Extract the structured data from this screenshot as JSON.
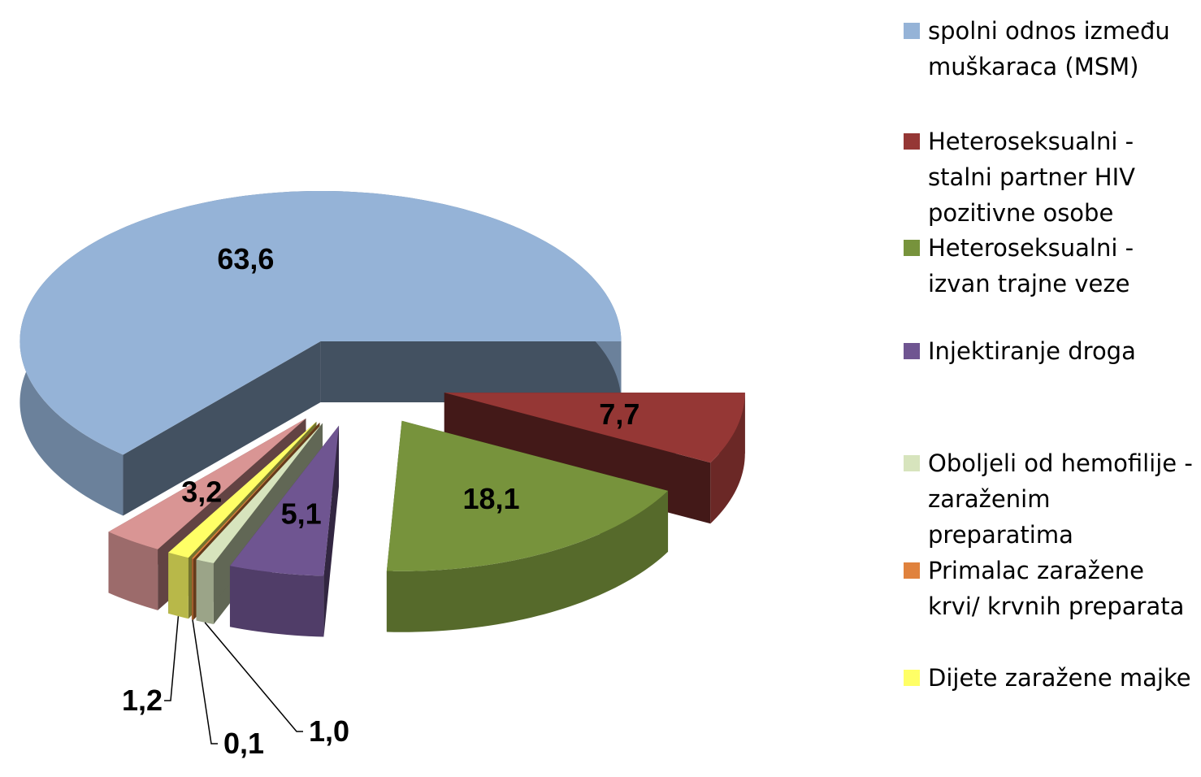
{
  "chart_data": {
    "type": "pie3d",
    "categories": [
      "spolni odnos između muškaraca (MSM)",
      "Heteroseksualni - stalni partner HIV pozitivne osobe",
      "Heteroseksualni - izvan trajne veze",
      "Injektiranje droga",
      "Oboljeli od hemofilije - zaraženim preparatima",
      "Primalac zaražene krvi/ krvnih preparata",
      "Dijete zaražene majke",
      null
    ],
    "values": [
      63.6,
      7.7,
      18.1,
      5.1,
      1.0,
      0.1,
      1.2,
      3.2
    ],
    "value_labels": [
      "63,6",
      "7,7",
      "18,1",
      "5,1",
      "1,0",
      "0,1",
      "1,2",
      "3,2"
    ],
    "colors": [
      "#95b3d7",
      "#953735",
      "#77933c",
      "#6f5591",
      "#d7e4bd",
      "#e0823d",
      "#ffff66",
      "#d99594"
    ],
    "legend": "right"
  }
}
